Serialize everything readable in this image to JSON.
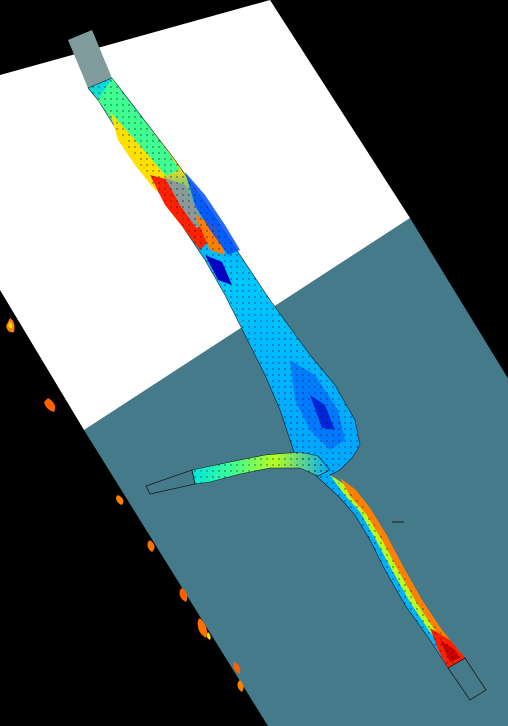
{
  "scene": {
    "background_color": "#000000",
    "upper_plane_color": "#ffffff",
    "lower_plane_color": "#457a8a",
    "outline_color": "#1a1a1a",
    "inlet_cap_color": "#7f9b9b",
    "vector_color": "#0a1a30"
  },
  "colormap": [
    "#0000c8",
    "#0050ff",
    "#00a8ff",
    "#00e8e0",
    "#40ff90",
    "#b8ff20",
    "#ffe000",
    "#ff8000",
    "#ff2000",
    "#c80000"
  ]
}
